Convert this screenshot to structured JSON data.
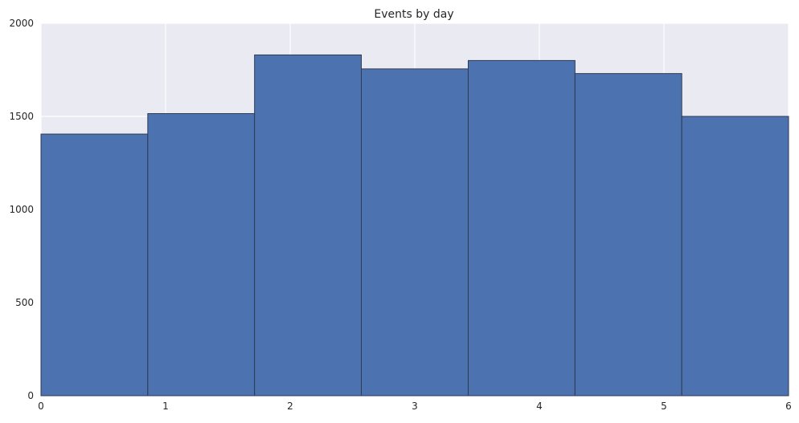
{
  "chart_data": {
    "type": "bar",
    "chart_kind": "histogram",
    "title": "Events by day",
    "xlabel": "",
    "ylabel": "",
    "xlim": [
      0,
      6
    ],
    "ylim": [
      0,
      2000
    ],
    "x_ticks": [
      0,
      1,
      2,
      3,
      4,
      5,
      6
    ],
    "y_ticks": [
      0,
      500,
      1000,
      1500,
      2000
    ],
    "grid": true,
    "bins": [
      {
        "x0": 0.0,
        "x1": 0.857,
        "value": 1405
      },
      {
        "x0": 0.857,
        "x1": 1.714,
        "value": 1515
      },
      {
        "x0": 1.714,
        "x1": 2.571,
        "value": 1830
      },
      {
        "x0": 2.571,
        "x1": 3.429,
        "value": 1755
      },
      {
        "x0": 3.429,
        "x1": 4.286,
        "value": 1800
      },
      {
        "x0": 4.286,
        "x1": 5.143,
        "value": 1730
      },
      {
        "x0": 5.143,
        "x1": 6.0,
        "value": 1500
      }
    ],
    "colors": {
      "bar_fill": "#4c72b0",
      "bar_edge": "#2e3b52",
      "plot_background": "#eaeaf2",
      "grid": "#ffffff",
      "text": "#262626"
    }
  }
}
